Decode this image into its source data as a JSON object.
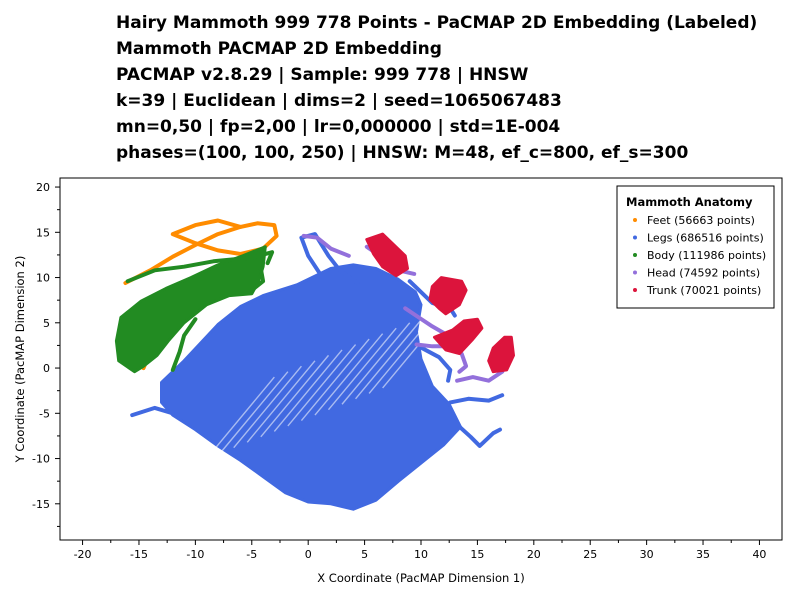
{
  "title_lines": [
    "Hairy Mammoth 999 778 Points - PaCMAP 2D Embedding (Labeled)",
    "Mammoth PACMAP 2D Embedding",
    "PACMAP v2.8.29 | Sample: 999 778 | HNSW",
    "k=39 | Euclidean | dims=2 | seed=1065067483",
    "mn=0,50 | fp=2,00 | lr=0,000000 | std=1E-004",
    "phases=(100, 100, 250) | HNSW: M=48, ef_c=800, ef_s=300"
  ],
  "chart_data": {
    "type": "scatter",
    "xlabel": "X Coordinate (PacMAP Dimension 1)",
    "ylabel": "Y Coordinate (PacMAP Dimension 2)",
    "xlim": [
      -22,
      42
    ],
    "ylim": [
      -19,
      21
    ],
    "xticks": [
      "-20",
      "-15",
      "-10",
      "-5",
      "0",
      "5",
      "10",
      "15",
      "20",
      "25",
      "30",
      "35",
      "40"
    ],
    "yticks": [
      "20",
      "15",
      "10",
      "5",
      "0",
      "-5",
      "-10",
      "-15"
    ],
    "grid": false,
    "legend": {
      "title": "Mammoth Anatomy",
      "placement": "top-right",
      "items": [
        "Feet (56663 points)",
        "Legs (686516 points)",
        "Body (111986 points)",
        "Head (74592 points)",
        "Trunk (70021 points)"
      ]
    },
    "series": [
      {
        "name": "Feet",
        "color": "#FF8C00",
        "regions": [
          {
            "kind": "path",
            "pts": [
              [
                -16.2,
                9.4
              ],
              [
                -14,
                10.8
              ],
              [
                -12,
                12.3
              ],
              [
                -10,
                13.6
              ],
              [
                -8,
                14.8
              ],
              [
                -6,
                15.6
              ],
              [
                -4.5,
                16
              ],
              [
                -3,
                15.8
              ],
              [
                -2.8,
                14.6
              ],
              [
                -4,
                13.2
              ],
              [
                -6,
                12.6
              ],
              [
                -8,
                13
              ],
              [
                -10,
                13.8
              ],
              [
                -12,
                14.8
              ],
              [
                -10,
                15.8
              ],
              [
                -8,
                16.3
              ],
              [
                -6,
                15.6
              ]
            ]
          },
          {
            "kind": "path",
            "pts": [
              [
                -14.6,
                0
              ],
              [
                -14.2,
                1.2
              ],
              [
                -13.8,
                2.4
              ]
            ]
          }
        ]
      },
      {
        "name": "Legs",
        "color": "#4169E1",
        "regions": [
          {
            "kind": "poly",
            "pts": [
              [
                -13,
                -1.6
              ],
              [
                -11,
                0.8
              ],
              [
                -8,
                4.8
              ],
              [
                -6,
                6.8
              ],
              [
                -4,
                8
              ],
              [
                -1,
                9.2
              ],
              [
                2,
                11
              ],
              [
                4,
                11.4
              ],
              [
                6,
                11
              ],
              [
                8,
                9.8
              ],
              [
                9.5,
                8.4
              ],
              [
                10,
                7
              ],
              [
                9.6,
                4
              ],
              [
                10,
                1
              ],
              [
                11,
                -2
              ],
              [
                12.5,
                -4
              ],
              [
                13.5,
                -6.5
              ],
              [
                12,
                -8.5
              ],
              [
                10,
                -10.5
              ],
              [
                8,
                -12.5
              ],
              [
                6,
                -14.6
              ],
              [
                4,
                -15.6
              ],
              [
                2,
                -15
              ],
              [
                0,
                -14.8
              ],
              [
                -2,
                -13.8
              ],
              [
                -4,
                -12
              ],
              [
                -6,
                -10.2
              ],
              [
                -8,
                -8.6
              ],
              [
                -10,
                -6.8
              ],
              [
                -12,
                -5.2
              ],
              [
                -13,
                -3.8
              ]
            ]
          },
          {
            "kind": "path",
            "pts": [
              [
                1,
                10.5
              ],
              [
                0,
                12.4
              ],
              [
                -0.6,
                14.4
              ],
              [
                0.6,
                14.8
              ],
              [
                1.8,
                12.4
              ],
              [
                2.8,
                10.8
              ],
              [
                4.4,
                9.4
              ]
            ]
          },
          {
            "kind": "path",
            "pts": [
              [
                9,
                9.6
              ],
              [
                11,
                7.2
              ],
              [
                12.6,
                6.6
              ],
              [
                13,
                5.8
              ]
            ]
          },
          {
            "kind": "path",
            "pts": [
              [
                9.8,
                2.4
              ],
              [
                11.6,
                1.2
              ],
              [
                12.6,
                -0.2
              ],
              [
                12.4,
                -1.4
              ]
            ]
          },
          {
            "kind": "path",
            "pts": [
              [
                12.6,
                -3.8
              ],
              [
                14.2,
                -3.4
              ],
              [
                16,
                -3.6
              ],
              [
                17.2,
                -3
              ]
            ]
          },
          {
            "kind": "path",
            "pts": [
              [
                12.8,
                -5.8
              ],
              [
                14.4,
                -7.6
              ],
              [
                15.2,
                -8.6
              ],
              [
                16.4,
                -7.2
              ],
              [
                17,
                -6.8
              ]
            ]
          },
          {
            "kind": "path",
            "pts": [
              [
                -12,
                -5
              ],
              [
                -13.6,
                -4.4
              ],
              [
                -15.6,
                -5.2
              ]
            ]
          }
        ]
      },
      {
        "name": "Body",
        "color": "#228B22",
        "regions": [
          {
            "kind": "poly",
            "pts": [
              [
                -15.4,
                -0.4
              ],
              [
                -16.8,
                0.8
              ],
              [
                -17,
                3
              ],
              [
                -16.6,
                5.6
              ],
              [
                -14.8,
                7.4
              ],
              [
                -12.6,
                8.8
              ],
              [
                -10.4,
                10
              ],
              [
                -8,
                11.4
              ],
              [
                -5.8,
                12.4
              ],
              [
                -3.8,
                13.4
              ],
              [
                -4,
                11.2
              ],
              [
                -4.4,
                9.6
              ],
              [
                -5,
                8.2
              ],
              [
                -7,
                8
              ],
              [
                -9,
                7
              ],
              [
                -11,
                5
              ],
              [
                -12.4,
                3
              ],
              [
                -13.4,
                1.4
              ],
              [
                -14.6,
                0.2
              ]
            ]
          },
          {
            "kind": "path",
            "pts": [
              [
                -16,
                9.6
              ],
              [
                -13.6,
                10.8
              ],
              [
                -11,
                11.2
              ],
              [
                -8.4,
                11.8
              ],
              [
                -5,
                12.2
              ],
              [
                -3.2,
                12.8
              ],
              [
                -3.6,
                11.6
              ]
            ]
          },
          {
            "kind": "path",
            "pts": [
              [
                -12,
                -0.2
              ],
              [
                -11.4,
                1.8
              ],
              [
                -11,
                3.6
              ],
              [
                -10,
                5.4
              ]
            ]
          },
          {
            "kind": "path",
            "pts": [
              [
                -5,
                8.6
              ],
              [
                -4,
                9.6
              ],
              [
                -4.2,
                11
              ]
            ]
          }
        ]
      },
      {
        "name": "Head",
        "color": "#9370DB",
        "regions": [
          {
            "kind": "path",
            "pts": [
              [
                -0.4,
                14.6
              ],
              [
                0.8,
                14.4
              ],
              [
                2,
                13.2
              ],
              [
                3.6,
                12.4
              ]
            ]
          },
          {
            "kind": "path",
            "pts": [
              [
                5.2,
                13.4
              ],
              [
                6.6,
                12.2
              ],
              [
                8,
                10.8
              ],
              [
                9.4,
                10.4
              ]
            ]
          },
          {
            "kind": "path",
            "pts": [
              [
                8.6,
                6.6
              ],
              [
                9.8,
                5.6
              ],
              [
                11,
                4.6
              ],
              [
                12.4,
                3.6
              ],
              [
                13.2,
                3.2
              ]
            ]
          },
          {
            "kind": "path",
            "pts": [
              [
                9.6,
                2.6
              ],
              [
                11,
                2.4
              ],
              [
                12.4,
                2.4
              ],
              [
                13.6,
                1.6
              ],
              [
                14,
                0.2
              ],
              [
                13.4,
                -0.4
              ]
            ]
          },
          {
            "kind": "path",
            "pts": [
              [
                13.2,
                -1.4
              ],
              [
                14.6,
                -1
              ],
              [
                16,
                -1.4
              ],
              [
                17.2,
                -0.4
              ]
            ]
          }
        ]
      },
      {
        "name": "Trunk",
        "color": "#DC143C",
        "regions": [
          {
            "kind": "poly",
            "pts": [
              [
                7.6,
                13.6
              ],
              [
                8.6,
                12.4
              ],
              [
                8.8,
                11
              ],
              [
                7.8,
                10.2
              ],
              [
                6.6,
                11.2
              ],
              [
                5.8,
                12.6
              ],
              [
                5.2,
                14.2
              ],
              [
                6.6,
                14.8
              ]
            ]
          },
          {
            "kind": "poly",
            "pts": [
              [
                11.8,
                10
              ],
              [
                13.6,
                9.6
              ],
              [
                14,
                8.6
              ],
              [
                13.4,
                7
              ],
              [
                12.2,
                6
              ],
              [
                11.6,
                6.6
              ],
              [
                10.8,
                7.6
              ],
              [
                11,
                9
              ]
            ]
          },
          {
            "kind": "poly",
            "pts": [
              [
                13.8,
                5.2
              ],
              [
                15,
                5.4
              ],
              [
                15.4,
                4.4
              ],
              [
                14.6,
                3.2
              ],
              [
                13.4,
                1.6
              ],
              [
                12.2,
                2
              ],
              [
                11.2,
                3.4
              ],
              [
                12.8,
                4.2
              ]
            ]
          },
          {
            "kind": "poly",
            "pts": [
              [
                17.4,
                3.4
              ],
              [
                18,
                3.4
              ],
              [
                18.2,
                1.4
              ],
              [
                17.6,
                -0.2
              ],
              [
                16.4,
                -0.4
              ],
              [
                16,
                0.8
              ],
              [
                16.4,
                2.2
              ]
            ]
          }
        ]
      }
    ]
  }
}
